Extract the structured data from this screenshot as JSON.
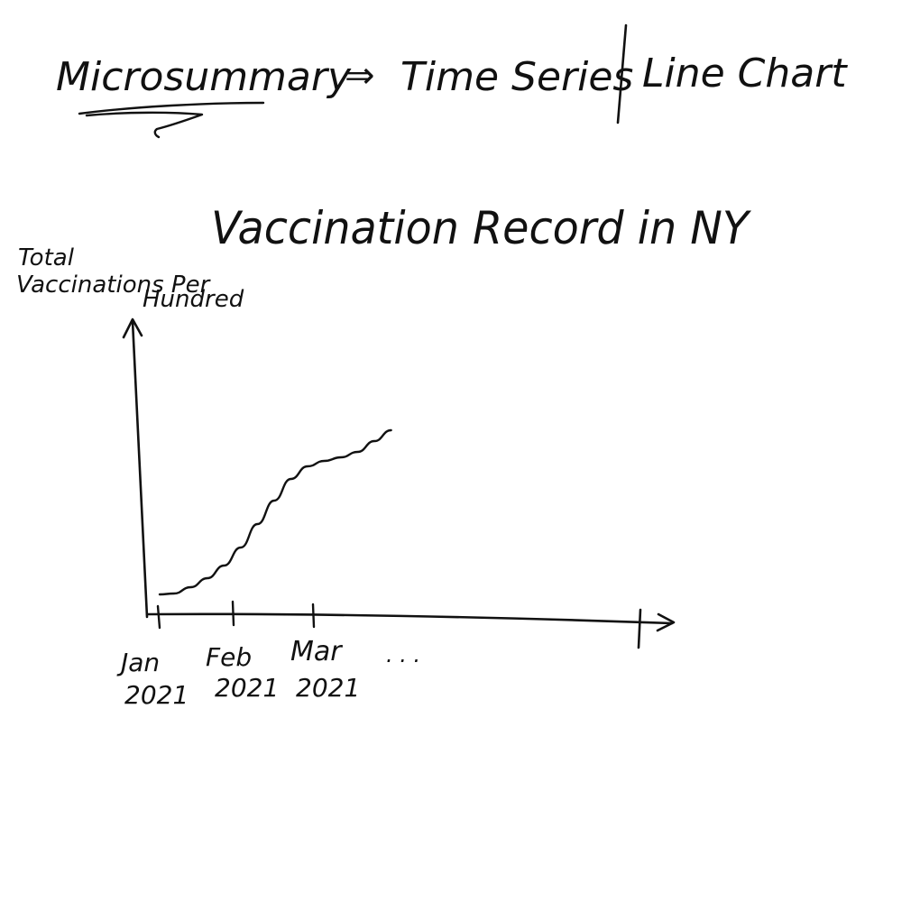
{
  "header": {
    "left": "Microsummary",
    "arrow": "⇒",
    "middle": "Time Series",
    "right": "Line Chart"
  },
  "chart_data": {
    "type": "line",
    "title": "Vaccination Record in NY",
    "ylabel_lines": [
      "Total",
      "Vaccinations Per",
      "Hundred"
    ],
    "x_ticks": [
      {
        "line1": "Jan",
        "line2": "2021"
      },
      {
        "line1": "Feb",
        "line2": "2021"
      },
      {
        "line1": "Mar",
        "line2": "2021"
      }
    ],
    "x_continuation": ". . .",
    "x": [
      "2021-01-01",
      "2021-01-07",
      "2021-01-14",
      "2021-01-21",
      "2021-01-28",
      "2021-02-04",
      "2021-02-11",
      "2021-02-18",
      "2021-02-25",
      "2021-03-04",
      "2021-03-11",
      "2021-03-18",
      "2021-03-25",
      "2021-04-01",
      "2021-04-08"
    ],
    "values": [
      1.0,
      1.5,
      5,
      10,
      17,
      27,
      40,
      53,
      65,
      72,
      75,
      77,
      80,
      86,
      92
    ],
    "ylim": [
      0,
      150
    ],
    "grid": false,
    "legend": "none",
    "ink_color": "#111111"
  }
}
